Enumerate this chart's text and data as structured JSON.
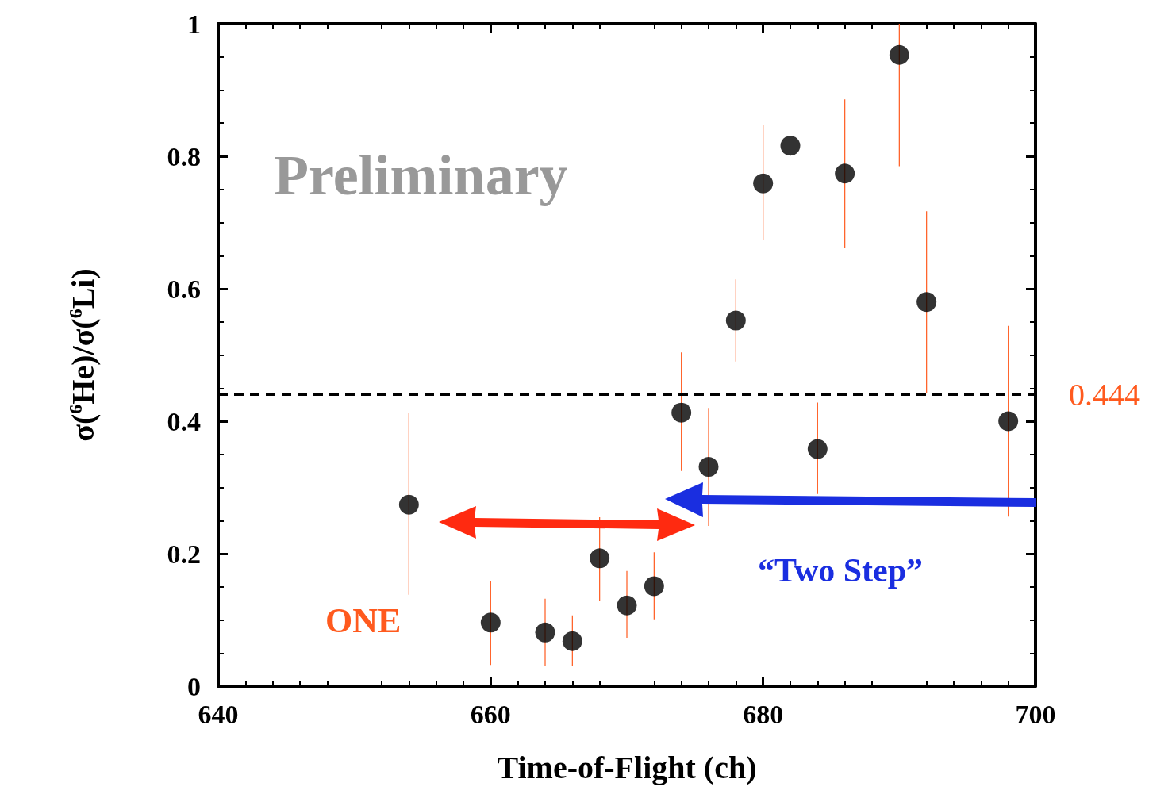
{
  "chart_data": {
    "type": "scatter",
    "xlabel": "Time-of-Flight (ch)",
    "ylabel": "σ($^{6}$He)/σ($^{6}$Li)",
    "x": [
      654,
      660,
      664,
      666,
      668,
      670,
      672,
      674,
      676,
      678,
      680,
      682,
      684,
      686,
      690,
      692,
      698
    ],
    "series": [
      {
        "color": "#000000",
        "values": [
          0.274,
          0.096,
          0.081,
          0.068,
          0.193,
          0.122,
          0.151,
          0.413,
          0.331,
          0.552,
          0.759,
          0.816,
          0.358,
          0.774,
          0.953,
          0.58,
          0.4
        ],
        "errors": [
          [
            0.138,
            0.413
          ],
          [
            0.032,
            0.158
          ],
          [
            0.031,
            0.132
          ],
          [
            0.03,
            0.107
          ],
          [
            0.129,
            0.255
          ],
          [
            0.073,
            0.174
          ],
          [
            0.101,
            0.202
          ],
          [
            0.325,
            0.504
          ],
          [
            0.242,
            0.42
          ],
          [
            0.49,
            0.614
          ],
          [
            0.673,
            0.848
          ],
          null,
          [
            0.29,
            0.428
          ],
          [
            0.661,
            0.886
          ],
          [
            0.785,
            1.0
          ],
          [
            0.443,
            0.717
          ],
          [
            0.256,
            0.544
          ]
        ]
      }
    ],
    "xlim": [
      640,
      700
    ],
    "xticks": [
      640,
      660,
      680,
      700
    ],
    "ylim": [
      0,
      1
    ],
    "yticks": [
      0,
      0.2,
      0.4,
      0.6,
      0.8,
      1
    ],
    "ref_lines": [
      {
        "axis": "y",
        "value": 0.444,
        "label": "0.444",
        "color": "#000000",
        "line_style": "dashed"
      }
    ],
    "annotations": [
      "Preliminary",
      "ONE",
      "“Two Step”"
    ],
    "marker": "circle",
    "grid": false
  }
}
